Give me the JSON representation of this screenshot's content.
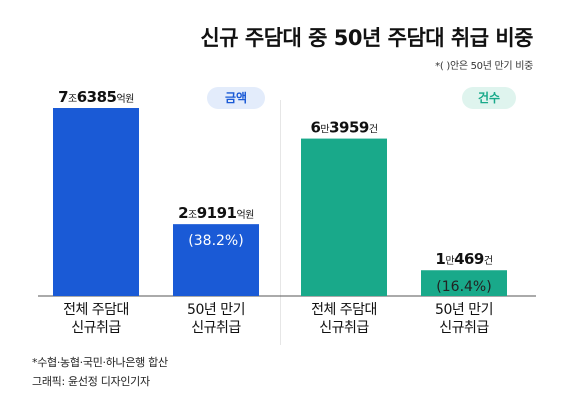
{
  "header": {
    "title": "신규 주담대 중 50년 주담대 취급 비중",
    "subtitle": "*( )안은 50년 만기 비중"
  },
  "footer": {
    "note": "*수협·농협·국민·하나은행 합산",
    "credit": "그래픽: 윤선정 디자인기자"
  },
  "colors": {
    "amount": "#1a5ad6",
    "count": "#19a98a",
    "amount_pill_bg": "#e3ecfb",
    "count_pill_bg": "#dff4ee"
  },
  "chart_data": [
    {
      "type": "bar",
      "title": "금액",
      "unit": "억원",
      "categories": [
        "전체 주담대 신규취급",
        "50년 만기 신규취급"
      ],
      "values": [
        76385,
        29191
      ],
      "labels": [
        {
          "big1": "7",
          "small1": "조",
          "big2": "6385",
          "small2": "억원"
        },
        {
          "big1": "2",
          "small1": "조",
          "big2": "9191",
          "small2": "억원"
        }
      ],
      "share_label": "(38.2%)",
      "share_value": 38.2,
      "ylim": [
        0,
        76385
      ]
    },
    {
      "type": "bar",
      "title": "건수",
      "unit": "건",
      "categories": [
        "전체 주담대 신규취급",
        "50년 만기 신규취급"
      ],
      "values": [
        63959,
        10469
      ],
      "labels": [
        {
          "big1": "6",
          "small1": "만",
          "big2": "3959",
          "small2": "건"
        },
        {
          "big1": "1",
          "small1": "만",
          "big2": "469",
          "small2": "건"
        }
      ],
      "share_label": "(16.4%)",
      "share_value": 16.4,
      "ylim": [
        0,
        76385
      ]
    }
  ],
  "axis_labels": [
    [
      "전체 주담대",
      "신규취급"
    ],
    [
      "50년 만기",
      "신규취급"
    ]
  ]
}
